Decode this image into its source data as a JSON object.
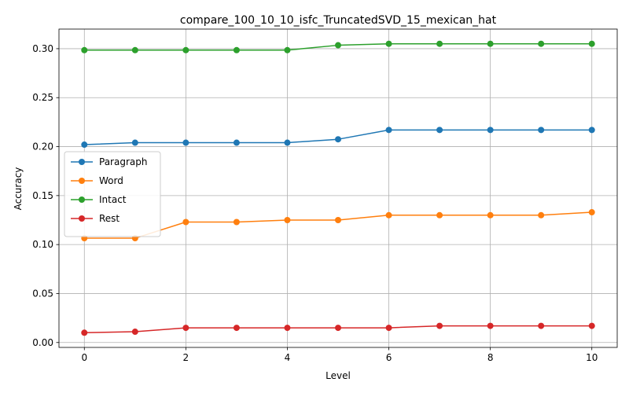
{
  "chart_data": {
    "type": "line",
    "title": "compare_100_10_10_isfc_TruncatedSVD_15_mexican_hat",
    "xlabel": "Level",
    "ylabel": "Accuracy",
    "x": [
      0,
      1,
      2,
      3,
      4,
      5,
      6,
      7,
      8,
      9,
      10
    ],
    "xlim": [
      -0.5,
      10.5
    ],
    "ylim": [
      -0.005,
      0.32
    ],
    "xticks": [
      0,
      2,
      4,
      6,
      8,
      10
    ],
    "xtick_labels": [
      "0",
      "2",
      "4",
      "6",
      "8",
      "10"
    ],
    "yticks": [
      0.0,
      0.05,
      0.1,
      0.15,
      0.2,
      0.25,
      0.3
    ],
    "ytick_labels": [
      "0.00",
      "0.05",
      "0.10",
      "0.15",
      "0.20",
      "0.25",
      "0.30"
    ],
    "grid": true,
    "legend_position": "center-left",
    "series": [
      {
        "name": "Paragraph",
        "color": "#1f77b4",
        "values": [
          0.202,
          0.204,
          0.204,
          0.204,
          0.204,
          0.2075,
          0.217,
          0.217,
          0.217,
          0.217,
          0.217
        ]
      },
      {
        "name": "Word",
        "color": "#ff7f0e",
        "values": [
          0.1065,
          0.1065,
          0.123,
          0.123,
          0.125,
          0.125,
          0.13,
          0.13,
          0.13,
          0.13,
          0.133
        ]
      },
      {
        "name": "Intact",
        "color": "#2ca02c",
        "values": [
          0.2985,
          0.2985,
          0.2985,
          0.2985,
          0.2985,
          0.3035,
          0.305,
          0.305,
          0.305,
          0.305,
          0.305
        ]
      },
      {
        "name": "Rest",
        "color": "#d62728",
        "values": [
          0.01,
          0.011,
          0.015,
          0.015,
          0.015,
          0.015,
          0.015,
          0.017,
          0.017,
          0.017,
          0.017
        ]
      }
    ]
  }
}
